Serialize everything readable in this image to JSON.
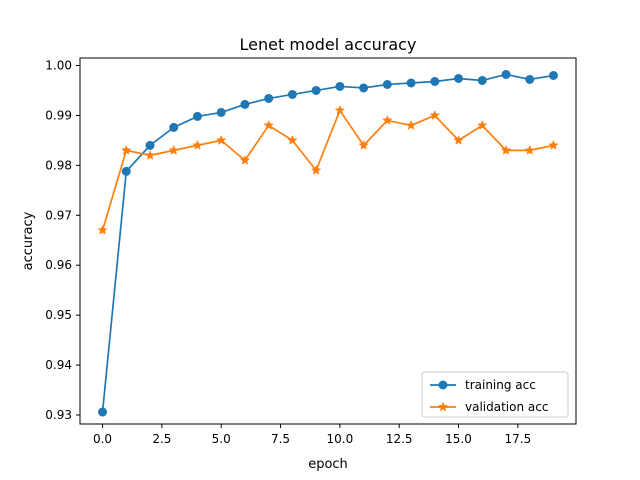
{
  "chart_data": {
    "type": "line",
    "title": "Lenet model accuracy",
    "xlabel": "epoch",
    "ylabel": "accuracy",
    "x": [
      0,
      1,
      2,
      3,
      4,
      5,
      6,
      7,
      8,
      9,
      10,
      11,
      12,
      13,
      14,
      15,
      16,
      17,
      18,
      19
    ],
    "xlim": [
      -0.95,
      19.95
    ],
    "ylim": [
      0.9282,
      1.0015
    ],
    "xticks": [
      0.0,
      2.5,
      5.0,
      7.5,
      10.0,
      12.5,
      15.0,
      17.5
    ],
    "xtick_labels": [
      "0.0",
      "2.5",
      "5.0",
      "7.5",
      "10.0",
      "12.5",
      "15.0",
      "17.5"
    ],
    "yticks": [
      0.93,
      0.94,
      0.95,
      0.96,
      0.97,
      0.98,
      0.99,
      1.0
    ],
    "ytick_labels": [
      "0.93",
      "0.94",
      "0.95",
      "0.96",
      "0.97",
      "0.98",
      "0.99",
      "1.00"
    ],
    "grid": false,
    "legend_position": "lower-right",
    "series": [
      {
        "name": "training acc",
        "color": "#1f77b4",
        "marker": "circle",
        "values": [
          0.9306,
          0.9788,
          0.984,
          0.9876,
          0.9898,
          0.9906,
          0.9922,
          0.9934,
          0.9942,
          0.995,
          0.9958,
          0.9955,
          0.9962,
          0.9965,
          0.9968,
          0.9974,
          0.997,
          0.9982,
          0.9972,
          0.998
        ]
      },
      {
        "name": "validation acc",
        "color": "#ff7f0e",
        "marker": "star",
        "values": [
          0.967,
          0.983,
          0.982,
          0.983,
          0.984,
          0.985,
          0.981,
          0.988,
          0.985,
          0.979,
          0.991,
          0.984,
          0.989,
          0.988,
          0.99,
          0.985,
          0.988,
          0.983,
          0.983,
          0.984
        ]
      }
    ]
  }
}
